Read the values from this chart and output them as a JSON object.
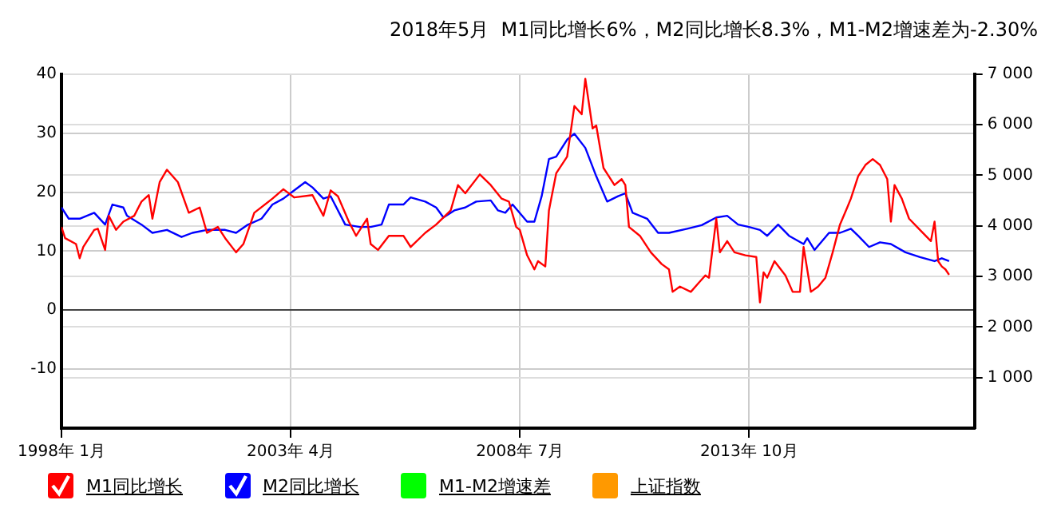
{
  "chart_data": {
    "type": "line",
    "title": "2018年5月  M1同比增长6%，M2同比增长8.3%，M1-M2增速差为-2.30%",
    "xlim": [
      "1998-01",
      "2018-12"
    ],
    "xticks": [
      {
        "value": "1998-01",
        "label": "1998年 1月"
      },
      {
        "value": "2003-04",
        "label": "2003年 4月"
      },
      {
        "value": "2008-07",
        "label": "2008年 7月"
      },
      {
        "value": "2013-10",
        "label": "2013年 10月"
      }
    ],
    "ylim": [
      -20,
      40
    ],
    "yticks": [
      -10,
      0,
      10,
      20,
      30,
      40
    ],
    "y2lim": [
      0,
      7000
    ],
    "y2ticks": [
      {
        "value": 1000,
        "label": "1 000"
      },
      {
        "value": 2000,
        "label": "2 000"
      },
      {
        "value": 3000,
        "label": "3 000"
      },
      {
        "value": 4000,
        "label": "4 000"
      },
      {
        "value": 5000,
        "label": "5 000"
      },
      {
        "value": 6000,
        "label": "6 000"
      },
      {
        "value": 7000,
        "label": "7 000"
      }
    ],
    "grid": true,
    "legend": "bottom",
    "marker": "none",
    "line_style": "solid",
    "series": [
      {
        "name": "M1同比增长",
        "color": "#ff0000",
        "x": [
          "1998-01",
          "1998-02",
          "1998-05",
          "1998-06",
          "1998-07",
          "1998-10",
          "1998-11",
          "1999-01",
          "1999-02",
          "1999-04",
          "1999-06",
          "1999-09",
          "1999-11",
          "2000-01",
          "2000-02",
          "2000-04",
          "2000-06",
          "2000-09",
          "2000-12",
          "2001-03",
          "2001-05",
          "2001-08",
          "2001-10",
          "2002-01",
          "2002-03",
          "2002-06",
          "2002-11",
          "2003-02",
          "2003-05",
          "2003-10",
          "2004-01",
          "2004-03",
          "2004-05",
          "2004-08",
          "2004-10",
          "2005-01",
          "2005-02",
          "2005-04",
          "2005-07",
          "2005-11",
          "2006-01",
          "2006-05",
          "2006-08",
          "2006-12",
          "2007-02",
          "2007-04",
          "2007-08",
          "2007-11",
          "2008-02",
          "2008-04",
          "2008-06",
          "2008-07",
          "2008-09",
          "2008-11",
          "2008-12",
          "2009-02",
          "2009-03",
          "2009-05",
          "2009-08",
          "2009-10",
          "2009-12",
          "2010-01",
          "2010-03",
          "2010-04",
          "2010-06",
          "2010-09",
          "2010-11",
          "2010-12",
          "2011-01",
          "2011-04",
          "2011-07",
          "2011-10",
          "2011-12",
          "2012-01",
          "2012-03",
          "2012-06",
          "2012-08",
          "2012-10",
          "2012-11",
          "2013-01",
          "2013-02",
          "2013-04",
          "2013-06",
          "2013-09",
          "2013-12",
          "2014-01",
          "2014-02",
          "2014-03",
          "2014-05",
          "2014-08",
          "2014-10",
          "2014-12",
          "2015-01",
          "2015-03",
          "2015-05",
          "2015-07",
          "2015-09",
          "2015-11",
          "2016-01",
          "2016-02",
          "2016-04",
          "2016-06",
          "2016-08",
          "2016-10",
          "2016-12",
          "2017-01",
          "2017-02",
          "2017-04",
          "2017-06",
          "2017-09",
          "2017-12",
          "2018-01",
          "2018-02",
          "2018-03",
          "2018-04",
          "2018-05"
        ],
        "values": [
          14.1,
          12.2,
          11.2,
          8.8,
          10.7,
          13.6,
          13.8,
          10.2,
          16,
          13.6,
          15,
          16,
          18.4,
          19.5,
          15.5,
          21.7,
          23.8,
          21.7,
          16.5,
          17.4,
          13.1,
          14.1,
          12.2,
          9.8,
          11.2,
          16.5,
          18.9,
          20.5,
          19.1,
          19.5,
          16,
          20.3,
          19.3,
          15,
          12.6,
          15.5,
          11.2,
          10.2,
          12.6,
          12.6,
          10.7,
          13.1,
          14.5,
          16.9,
          21.2,
          19.8,
          23,
          21.2,
          18.9,
          18.4,
          14.1,
          13.6,
          9.3,
          6.9,
          8.3,
          7.4,
          16.9,
          23.2,
          26,
          34.6,
          33.2,
          39.2,
          30.8,
          31.3,
          24.1,
          21.2,
          22.2,
          21.2,
          14.1,
          12.6,
          9.8,
          7.8,
          6.9,
          3.1,
          4,
          3.1,
          4.5,
          5.9,
          5.5,
          15.5,
          9.8,
          11.7,
          9.8,
          9.3,
          9,
          1.3,
          6.4,
          5.5,
          8.3,
          5.9,
          3.1,
          3.1,
          10.7,
          3.1,
          4,
          5.5,
          9.8,
          14.5,
          17.4,
          18.9,
          22.7,
          24.6,
          25.6,
          24.6,
          22.2,
          15,
          21.2,
          18.9,
          15.5,
          13.6,
          11.7,
          15,
          8.3,
          7.4,
          6.9,
          6
        ]
      },
      {
        "name": "M2同比增长",
        "color": "#0000ff",
        "x": [
          "1998-01",
          "1998-03",
          "1998-06",
          "1998-10",
          "1999-01",
          "1999-03",
          "1999-06",
          "1999-07",
          "1999-11",
          "2000-02",
          "2000-06",
          "2000-10",
          "2001-01",
          "2001-05",
          "2001-10",
          "2002-01",
          "2002-04",
          "2002-08",
          "2002-11",
          "2003-02",
          "2003-05",
          "2003-08",
          "2003-10",
          "2004-01",
          "2004-03",
          "2004-07",
          "2004-11",
          "2005-02",
          "2005-05",
          "2005-07",
          "2005-11",
          "2006-01",
          "2006-05",
          "2006-08",
          "2006-10",
          "2007-01",
          "2007-04",
          "2007-07",
          "2007-11",
          "2008-01",
          "2008-03",
          "2008-05",
          "2008-09",
          "2008-11",
          "2009-01",
          "2009-03",
          "2009-05",
          "2009-08",
          "2009-10",
          "2010-01",
          "2010-04",
          "2010-07",
          "2010-10",
          "2010-12",
          "2011-02",
          "2011-06",
          "2011-09",
          "2011-12",
          "2012-05",
          "2012-09",
          "2013-01",
          "2013-04",
          "2013-07",
          "2013-10",
          "2014-01",
          "2014-03",
          "2014-06",
          "2014-09",
          "2015-01",
          "2015-02",
          "2015-04",
          "2015-08",
          "2015-11",
          "2016-02",
          "2016-04",
          "2016-07",
          "2016-10",
          "2017-01",
          "2017-05",
          "2017-09",
          "2018-01",
          "2018-03",
          "2018-05"
        ],
        "values": [
          17.4,
          15.5,
          15.5,
          16.5,
          14.5,
          17.9,
          17.4,
          16,
          14.5,
          13.1,
          13.6,
          12.4,
          13.1,
          13.6,
          13.6,
          13.1,
          14.4,
          15.5,
          17.9,
          18.9,
          20.3,
          21.7,
          20.8,
          18.9,
          19.3,
          14.5,
          14.1,
          14.1,
          14.5,
          17.9,
          17.9,
          19.1,
          18.4,
          17.4,
          15.7,
          16.9,
          17.4,
          18.4,
          18.6,
          16.9,
          16.5,
          17.9,
          15,
          15,
          19.3,
          25.6,
          26,
          28.9,
          29.9,
          27.5,
          22.7,
          18.4,
          19.3,
          19.8,
          16.5,
          15.5,
          13.1,
          13.1,
          13.8,
          14.4,
          15.7,
          16,
          14.5,
          14.1,
          13.6,
          12.6,
          14.5,
          12.6,
          11.2,
          12.2,
          10.2,
          13.1,
          13.1,
          13.8,
          12.6,
          10.7,
          11.5,
          11.2,
          9.8,
          9,
          8.3,
          8.8,
          8.3
        ]
      },
      {
        "name": "M1-M2增速差",
        "color": "#00ff00"
      },
      {
        "name": "上证指数",
        "color": "#ff9900"
      }
    ]
  }
}
